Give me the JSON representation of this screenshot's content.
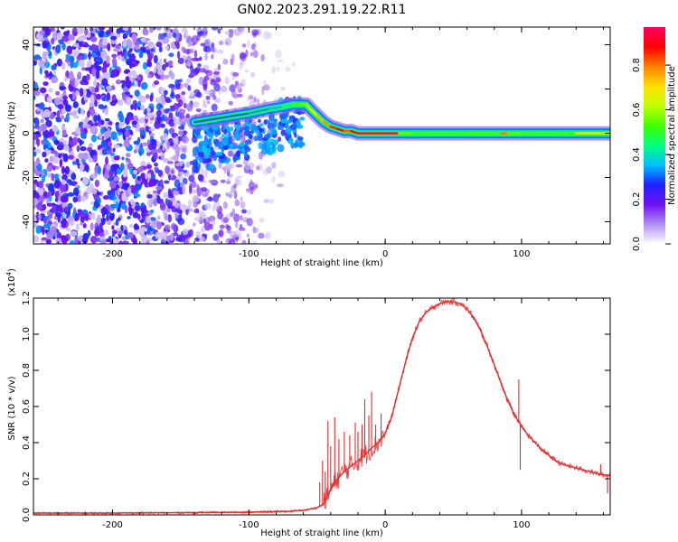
{
  "title": "GN02.2023.291.19.22.R11",
  "chart_data": [
    {
      "type": "heatmap",
      "xlabel": "Height of straight line (km)",
      "ylabel": "Frequency (Hz)",
      "xlim": [
        -258,
        165
      ],
      "ylim": [
        -50,
        48
      ],
      "xticks": [
        -200,
        -100,
        0,
        100
      ],
      "xtick_labels": [
        "-200",
        "-100",
        "0",
        "100"
      ],
      "yticks": [
        -40,
        -20,
        0,
        20,
        40
      ],
      "ytick_labels": [
        "-40",
        "-20",
        "0",
        "20",
        "40"
      ],
      "colorbar": {
        "label": "Normalized spectral amplitude",
        "range": [
          0,
          0.97
        ],
        "ticks": [
          0.0,
          0.2,
          0.4,
          0.6,
          0.8
        ],
        "tick_labels": [
          "0.0",
          "0.2",
          "0.4",
          "0.6",
          "0.8"
        ],
        "colors": [
          "#ffffff",
          "#b090f0",
          "#7010f0",
          "#2020ff",
          "#00c0ff",
          "#00ff80",
          "#40ff00",
          "#c0ff00",
          "#ffe000",
          "#ff8000",
          "#ff0000",
          "#ff0060"
        ]
      },
      "ridge": {
        "x": [
          -140,
          -120,
          -100,
          -85,
          -75,
          -68,
          -62,
          -58,
          -55,
          -50,
          -45,
          -40,
          -35,
          -30,
          -25,
          -20,
          -15,
          -10,
          -5,
          0,
          10,
          20,
          40,
          60,
          80,
          85,
          90,
          100,
          120,
          140,
          165
        ],
        "y": [
          5,
          7,
          9,
          11,
          12,
          13,
          13,
          13,
          11,
          8,
          5,
          3,
          2,
          1,
          1,
          0,
          0,
          0,
          0,
          0,
          0,
          0,
          0,
          0,
          0,
          0,
          0,
          0,
          0,
          0,
          0
        ],
        "amplitude": [
          0.3,
          0.3,
          0.33,
          0.35,
          0.42,
          0.5,
          0.55,
          0.6,
          0.68,
          0.74,
          0.78,
          0.86,
          0.9,
          0.82,
          0.9,
          0.95,
          0.95,
          0.92,
          0.92,
          0.95,
          0.55,
          0.5,
          0.5,
          0.52,
          0.5,
          0.8,
          0.55,
          0.5,
          0.5,
          0.65,
          0.75
        ]
      }
    },
    {
      "type": "line",
      "xlabel": "Height of straight line (km)",
      "ylabel": "SNR (10 * v/v)",
      "scale_label": "(x10",
      "scale_exponent": "4",
      "scale_close": ")",
      "xlim": [
        -258,
        165
      ],
      "ylim": [
        0,
        1.2
      ],
      "xticks": [
        -200,
        -100,
        0,
        100
      ],
      "xtick_labels": [
        "-200",
        "-100",
        "0",
        "100"
      ],
      "yticks": [
        0.0,
        0.2,
        0.4,
        0.6,
        0.8,
        1.0,
        1.2
      ],
      "ytick_labels": [
        "0.0",
        "0.2",
        "0.4",
        "0.6",
        "0.8",
        "1.0",
        "1.2"
      ],
      "series": [
        {
          "color": "#e8292a",
          "x": [
            -258,
            -200,
            -150,
            -100,
            -70,
            -60,
            -50,
            -45,
            -40,
            -35,
            -30,
            -25,
            -20,
            -15,
            -10,
            -5,
            0,
            5,
            10,
            15,
            20,
            25,
            30,
            35,
            40,
            45,
            50,
            55,
            60,
            65,
            70,
            75,
            80,
            85,
            90,
            95,
            100,
            105,
            110,
            115,
            120,
            125,
            130,
            135,
            140,
            145,
            150,
            155,
            160,
            165
          ],
          "y": [
            0.01,
            0.01,
            0.012,
            0.015,
            0.02,
            0.025,
            0.04,
            0.06,
            0.14,
            0.2,
            0.24,
            0.27,
            0.3,
            0.33,
            0.37,
            0.4,
            0.45,
            0.55,
            0.7,
            0.85,
            0.98,
            1.07,
            1.12,
            1.15,
            1.17,
            1.18,
            1.18,
            1.17,
            1.14,
            1.09,
            1.02,
            0.93,
            0.83,
            0.73,
            0.63,
            0.55,
            0.49,
            0.44,
            0.4,
            0.36,
            0.33,
            0.3,
            0.28,
            0.27,
            0.26,
            0.25,
            0.24,
            0.23,
            0.22,
            0.22
          ],
          "spikes": [
            {
              "x": -48,
              "y": 0.18
            },
            {
              "x": -46,
              "y": 0.3
            },
            {
              "x": -44,
              "y": 0.24
            },
            {
              "x": -42,
              "y": 0.52
            },
            {
              "x": -40,
              "y": 0.38
            },
            {
              "x": -37,
              "y": 0.54
            },
            {
              "x": -34,
              "y": 0.42
            },
            {
              "x": -30,
              "y": 0.46
            },
            {
              "x": -26,
              "y": 0.44
            },
            {
              "x": -22,
              "y": 0.51
            },
            {
              "x": -20,
              "y": 0.46
            },
            {
              "x": -17,
              "y": 0.5
            },
            {
              "x": -15,
              "y": 0.64
            },
            {
              "x": -12,
              "y": 0.55
            },
            {
              "x": -10,
              "y": 0.68
            },
            {
              "x": -7,
              "y": 0.5
            },
            {
              "x": -3,
              "y": 0.56
            },
            {
              "x": 98,
              "y": 0.75
            },
            {
              "x": 99,
              "y": 0.25
            },
            {
              "x": 158,
              "y": 0.28
            },
            {
              "x": 163,
              "y": 0.12
            }
          ]
        }
      ]
    }
  ]
}
